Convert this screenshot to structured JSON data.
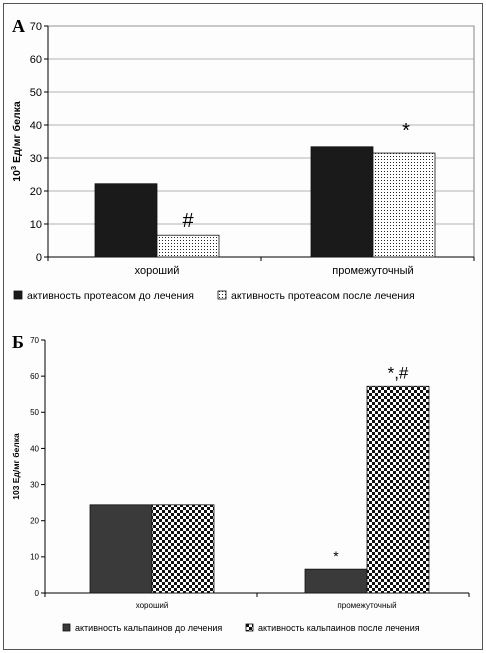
{
  "chart_data": [
    {
      "type": "bar",
      "panel_label": "A",
      "categories": [
        "хороший",
        "промежуточный"
      ],
      "series": [
        {
          "name": "активность протеасом до лечения",
          "values": [
            22.2,
            33.4
          ],
          "color": "#1a1a1a",
          "pattern": "solid"
        },
        {
          "name": "активность протеасом после лечения",
          "values": [
            6.6,
            31.5
          ],
          "color": "#ffffff",
          "pattern": "dots"
        }
      ],
      "annotations": [
        {
          "category": 0,
          "series": 1,
          "text": "#"
        },
        {
          "category": 1,
          "series": 1,
          "text": "*"
        }
      ],
      "ylabel_base": "10",
      "ylabel_sup": "3",
      "ylabel_rest": " Ед/мг белка",
      "ylim": [
        0,
        70
      ],
      "yticks": [
        0,
        10,
        20,
        30,
        40,
        50,
        60,
        70
      ],
      "grid": true,
      "legend": "bottom"
    },
    {
      "type": "bar",
      "panel_label": "Б",
      "categories": [
        "хороший",
        "промежуточный"
      ],
      "series": [
        {
          "name": "активность кальпаинов до лечения",
          "values": [
            24.4,
            6.6
          ],
          "color": "#3a3a3a",
          "pattern": "solid"
        },
        {
          "name": "активность кальпаинов после лечения",
          "values": [
            24.4,
            57.2
          ],
          "color": "#ffffff",
          "pattern": "checker"
        }
      ],
      "annotations": [
        {
          "category": 1,
          "series": 0,
          "text": "*"
        },
        {
          "category": 1,
          "series": 1,
          "text": "*,#"
        }
      ],
      "ylabel_base": "103 Ед/мг белка",
      "ylabel_sup": "",
      "ylabel_rest": "",
      "ylim": [
        0,
        70
      ],
      "yticks": [
        0,
        10,
        20,
        30,
        40,
        50,
        60,
        70
      ],
      "grid": false,
      "legend": "bottom"
    }
  ]
}
